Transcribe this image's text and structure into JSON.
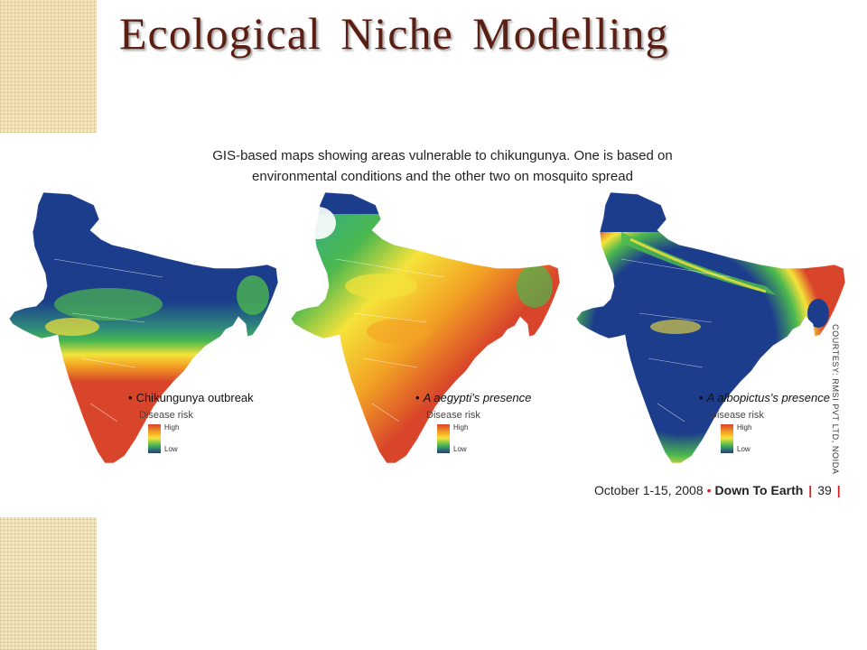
{
  "slide": {
    "title": "Ecological Niche Modelling"
  },
  "figure": {
    "caption_line1": "GIS-based maps showing areas vulnerable to chikungunya. One is based on",
    "caption_line2": "environmental conditions and the other two on mosquito spread",
    "maps": [
      {
        "bullet": "•",
        "label": "Chikungunya outbreak",
        "legend_title": "Disease risk",
        "legend_high": "High",
        "legend_low": "Low",
        "risk_pattern": "north-low-south-high"
      },
      {
        "bullet": "•",
        "label": "A aegypti's presence",
        "legend_title": "Disease risk",
        "legend_high": "High",
        "legend_low": "Low",
        "risk_pattern": "mostly-high"
      },
      {
        "bullet": "•",
        "label": "A albopictus's presence",
        "legend_title": "Disease risk",
        "legend_high": "High",
        "legend_low": "Low",
        "risk_pattern": "coastal-high-interior-low"
      }
    ],
    "courtesy": "COURTESY: RMSI PVT LTD, NOIDA",
    "source": {
      "date": "October 1-15, 2008",
      "separator": "•",
      "publication": "Down To Earth",
      "bar": "|",
      "page": "39",
      "bar_end": "|"
    }
  },
  "colors": {
    "title": "#5a1e12",
    "risk_low": "#1c3c8c",
    "risk_mid": "#4bb84f",
    "risk_mid_high": "#f5e33a",
    "risk_high": "#d9452a",
    "accent_red": "#d0202a"
  }
}
